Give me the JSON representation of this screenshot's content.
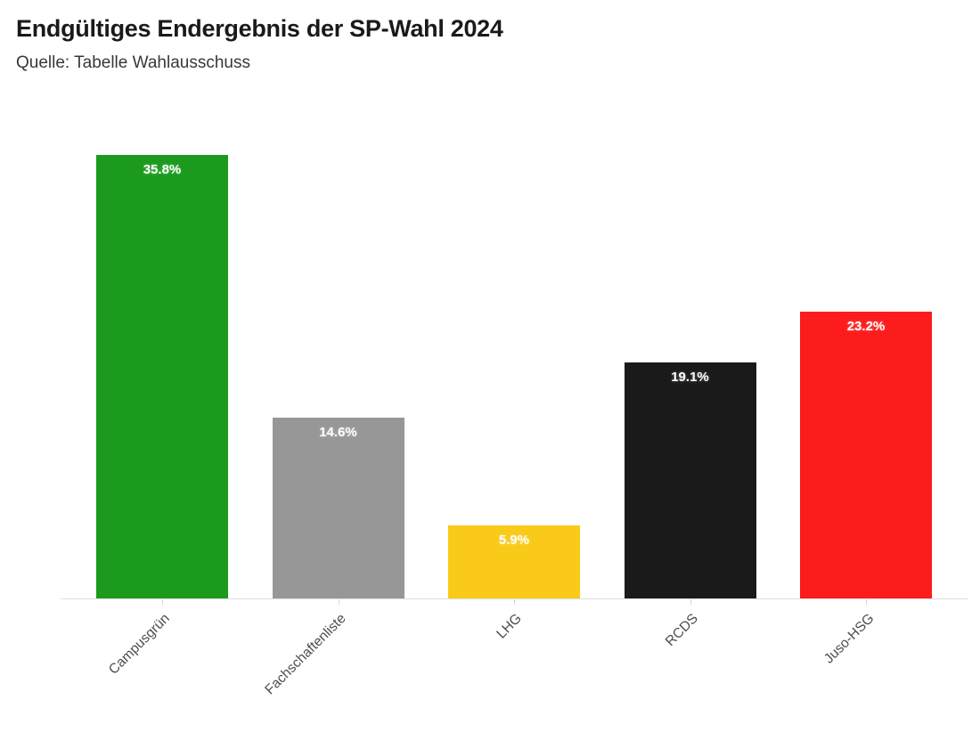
{
  "header": {
    "title": "Endgültiges Endergebnis der SP-Wahl 2024",
    "subtitle": "Quelle: Tabelle Wahlausschuss"
  },
  "chart_data": {
    "type": "bar",
    "title": "Endgültiges Endergebnis der SP-Wahl 2024",
    "subtitle": "Quelle: Tabelle Wahlausschuss",
    "categories": [
      "Campusgrün",
      "Fachschaftenliste",
      "LHG",
      "RCDS",
      "Juso-HSG"
    ],
    "values": [
      35.8,
      14.6,
      5.9,
      19.1,
      23.2
    ],
    "value_labels": [
      "35.8%",
      "14.6%",
      "5.9%",
      "19.1%",
      "23.2%"
    ],
    "bar_colors": [
      "#1b9a1e",
      "#979797",
      "#f9ca18",
      "#1a1a1a",
      "#fc1c1c"
    ],
    "xlabel": "",
    "ylabel": "",
    "ylim": [
      0,
      40
    ],
    "grid": false,
    "legend": "none",
    "value_label_color": "#ffffff",
    "axis_line_color": "#dddddd",
    "tick_label_rotation": -45
  }
}
